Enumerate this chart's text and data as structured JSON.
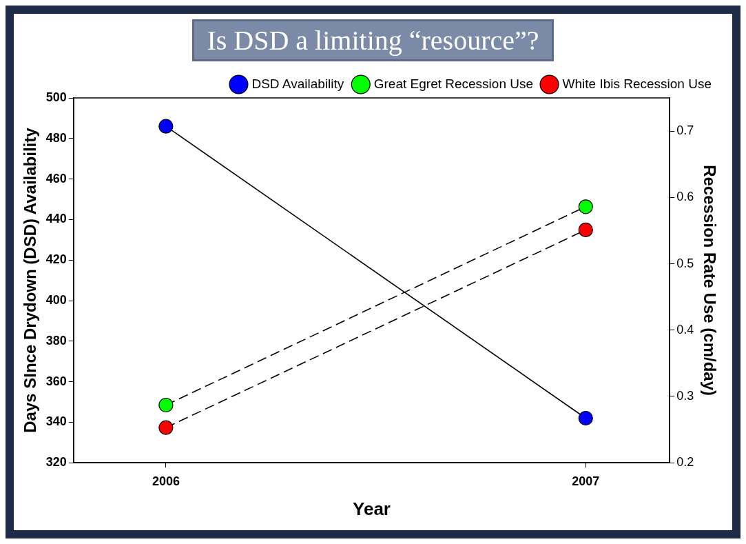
{
  "chart_data": {
    "type": "line",
    "title": "Is DSD a limiting “resource”?",
    "xlabel": "Year",
    "ylabel": "Days SInce Drydown (DSD) Availability",
    "y2label": "Recession Rate Use (cm/day)",
    "x": [
      2006,
      2007
    ],
    "xlim": [
      2005.78,
      2007.2
    ],
    "xticks": [
      2006,
      2007
    ],
    "ylim": [
      320,
      500
    ],
    "yticks": [
      320,
      340,
      360,
      380,
      400,
      420,
      440,
      460,
      480,
      500
    ],
    "y2lim": [
      0.2,
      0.75
    ],
    "y2ticks": [
      0.2,
      0.3,
      0.4,
      0.5,
      0.6,
      0.7
    ],
    "series": [
      {
        "name": "DSD Availability",
        "color": "#0000ff",
        "values": [
          486,
          342
        ],
        "line_style": "solid"
      },
      {
        "name": "Great Egret Recession Use",
        "color": "#00ff00",
        "values": [
          0.287,
          0.586
        ],
        "axis": "y2",
        "line_style": "dashed"
      },
      {
        "name": "White Ibis Recession Use",
        "color": "#ff0000",
        "values": [
          0.253,
          0.551
        ],
        "axis": "y2",
        "line_style": "dashed"
      }
    ],
    "marker": "circle",
    "grid": false,
    "legend": "top right"
  }
}
